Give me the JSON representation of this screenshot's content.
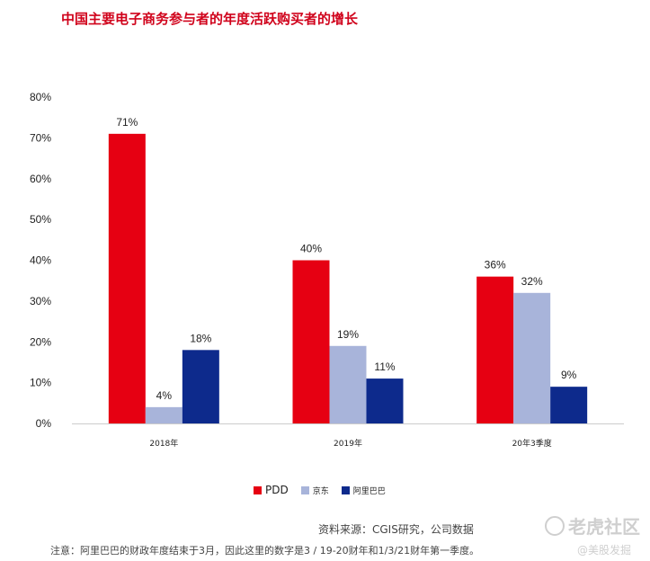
{
  "title": "中国主要电子商务参与者的年度活跃购买者的增长",
  "chart_data": {
    "type": "bar",
    "categories": [
      "2018年",
      "2019年",
      "20年3季度"
    ],
    "series": [
      {
        "name": "PDD",
        "color": "#e60012",
        "values": [
          71,
          40,
          36
        ],
        "labels": [
          "71%",
          "40%",
          "36%"
        ]
      },
      {
        "name": "京东",
        "color": "#a8b4da",
        "values": [
          4,
          19,
          32
        ],
        "labels": [
          "4%",
          "19%",
          "32%"
        ]
      },
      {
        "name": "阿里巴巴",
        "color": "#0d2a8c",
        "values": [
          18,
          11,
          9
        ],
        "labels": [
          "18%",
          "11%",
          "9%"
        ]
      }
    ],
    "yticks": [
      "0%",
      "10%",
      "20%",
      "30%",
      "40%",
      "50%",
      "60%",
      "70%",
      "80%"
    ],
    "ylim": [
      0,
      80
    ],
    "legend_position": "bottom",
    "grid": false
  },
  "source": "资料来源：CGIS研究，公司数据",
  "note": "注意：阿里巴巴的财政年度结束于3月，因此这里的数字是3 / 19-20财年和1/3/21财年第一季度。",
  "watermark": {
    "main": "老虎社区",
    "sub": "@美股发掘"
  }
}
